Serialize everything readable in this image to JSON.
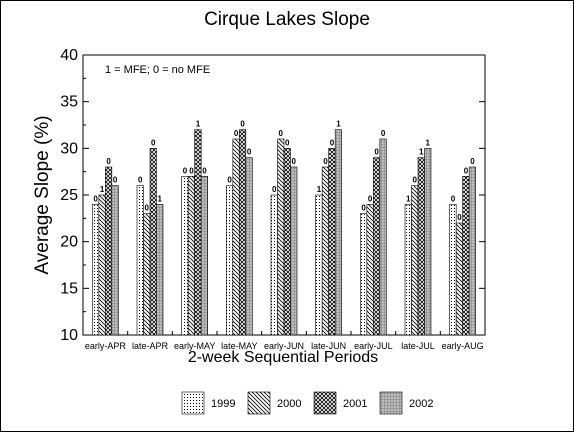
{
  "chart_data": {
    "type": "bar",
    "title": "Cirque Lakes Slope",
    "xlabel": "2-week Sequential Periods",
    "ylabel": "Average Slope (%)",
    "annotation": "1 = MFE; 0 = no MFE",
    "ylim": [
      10,
      40
    ],
    "yticks": [
      "10",
      "15",
      "20",
      "25",
      "30",
      "35",
      "40"
    ],
    "grid": false,
    "legend_position": "bottom",
    "categories": [
      "early-APR",
      "late-APR",
      "early-MAY",
      "late-MAY",
      "early-JUN",
      "late-JUN",
      "early-JUL",
      "late-JUL",
      "early-AUG"
    ],
    "series": [
      {
        "name": "1999",
        "pattern": "dots",
        "values": [
          24,
          26,
          27,
          26,
          25,
          25,
          23,
          24,
          24
        ],
        "labels": [
          "0",
          "0",
          "0",
          "0",
          "0",
          "1",
          "0",
          "1",
          "0"
        ]
      },
      {
        "name": "2000",
        "pattern": "diagonal",
        "values": [
          25,
          23,
          27,
          31,
          31,
          28,
          24,
          26,
          22
        ],
        "labels": [
          "1",
          "0",
          "0",
          "0",
          "0",
          "0",
          "0",
          "0",
          "0"
        ]
      },
      {
        "name": "2001",
        "pattern": "crosshatch",
        "values": [
          28,
          30,
          32,
          32,
          30,
          30,
          29,
          29,
          27
        ],
        "labels": [
          "0",
          "0",
          "1",
          "0",
          "0",
          "0",
          "0",
          "1",
          "0"
        ]
      },
      {
        "name": "2002",
        "pattern": "grid",
        "values": [
          26,
          24,
          27,
          29,
          28,
          32,
          31,
          30,
          28
        ],
        "labels": [
          "0",
          "1",
          "0",
          "0",
          "0",
          "1",
          "0",
          "1",
          "0"
        ]
      }
    ]
  }
}
